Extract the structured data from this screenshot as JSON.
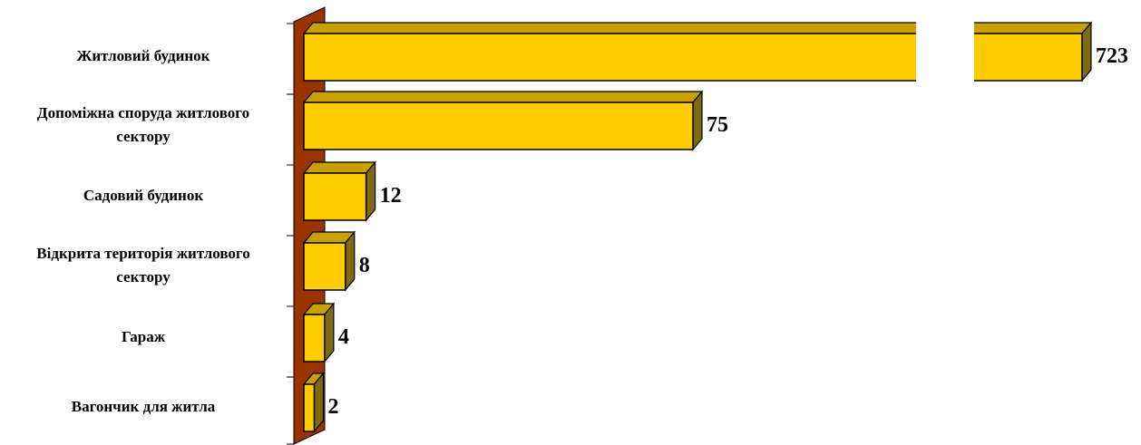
{
  "chart_data": {
    "type": "bar",
    "orientation": "horizontal",
    "style": "3d",
    "axis_break": true,
    "categories": [
      [
        "Житловий будинок"
      ],
      [
        "Допоміжна споруда житлового",
        "сектору"
      ],
      [
        "Садовий будинок"
      ],
      [
        "Відкрита територія житлового",
        "сектору"
      ],
      [
        "Гараж"
      ],
      [
        "Вагончик для житла"
      ]
    ],
    "values": [
      723,
      75,
      12,
      8,
      4,
      2
    ],
    "value_labels": [
      "723",
      "75",
      "12",
      "8",
      "4",
      "2"
    ],
    "colors": {
      "bar_front": "#FFCC00",
      "bar_top": "#C8A100",
      "bar_side": "#7F6A10",
      "axis_wall": "#993300"
    },
    "grid": false,
    "legend": "none"
  }
}
